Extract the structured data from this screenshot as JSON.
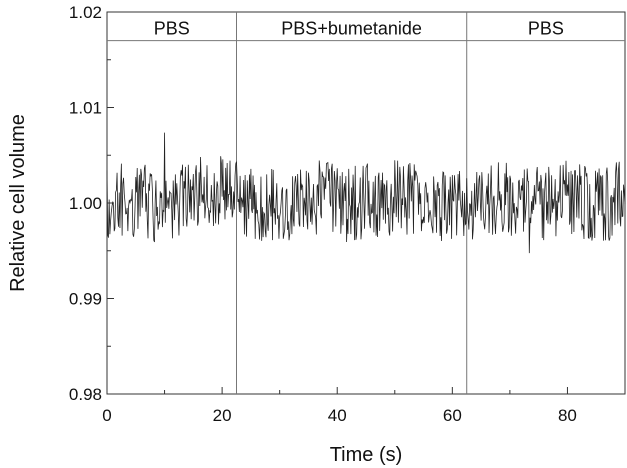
{
  "chart_data": {
    "type": "line",
    "title": "",
    "xlabel": "Time (s)",
    "ylabel": "Relative cell volume",
    "xlim": [
      0,
      90
    ],
    "ylim": [
      0.98,
      1.02
    ],
    "xticks": [
      0,
      20,
      40,
      60,
      80
    ],
    "xtick_labels": [
      "0",
      "20",
      "40",
      "60",
      "80"
    ],
    "yticks": [
      0.98,
      0.99,
      1.0,
      1.01,
      1.02
    ],
    "ytick_labels": [
      "0.98",
      "0.99",
      "1.00",
      "1.01",
      "1.02"
    ],
    "grid": false,
    "legend": "none",
    "phase_header_y": 1.017,
    "phases": [
      {
        "label": "PBS",
        "start": 0,
        "end": 22.5
      },
      {
        "label": "PBS+bumetanide",
        "start": 22.5,
        "end": 62.5
      },
      {
        "label": "PBS",
        "start": 62.5,
        "end": 90
      }
    ],
    "phase_boundaries": [
      22.5,
      62.5
    ],
    "series": [
      {
        "color": "#222222",
        "x": [
          0,
          2,
          4,
          6,
          8,
          10,
          12,
          14,
          16,
          18,
          20,
          22,
          24,
          26,
          28,
          30,
          32,
          34,
          36,
          38,
          40,
          42,
          44,
          46,
          48,
          50,
          52,
          54,
          56,
          58,
          60,
          62,
          64,
          66,
          68,
          70,
          72,
          74,
          76,
          78,
          80,
          82,
          84,
          86,
          88,
          90
        ],
        "y": [
          0.9995,
          1.0,
          1.0005,
          1.0003,
          0.9998,
          1.0002,
          1.0,
          1.0008,
          1.0012,
          1.0015,
          1.0016,
          1.0005,
          1.0003,
          0.9998,
          0.9997,
          0.9995,
          0.9996,
          0.9998,
          1.0005,
          1.0008,
          1.0002,
          0.9998,
          1.0,
          1.0003,
          1.0005,
          1.0006,
          1.0005,
          1.0003,
          1.0,
          0.9998,
          0.9995,
          0.9997,
          0.9998,
          1.0002,
          1.0005,
          1.0006,
          1.0003,
          1.0001,
          0.9998,
          1.0002,
          1.0005,
          1.0002,
          1.0,
          0.9998,
          1.0002,
          1.0005
        ],
        "noise_amplitude": 0.004
      }
    ]
  }
}
